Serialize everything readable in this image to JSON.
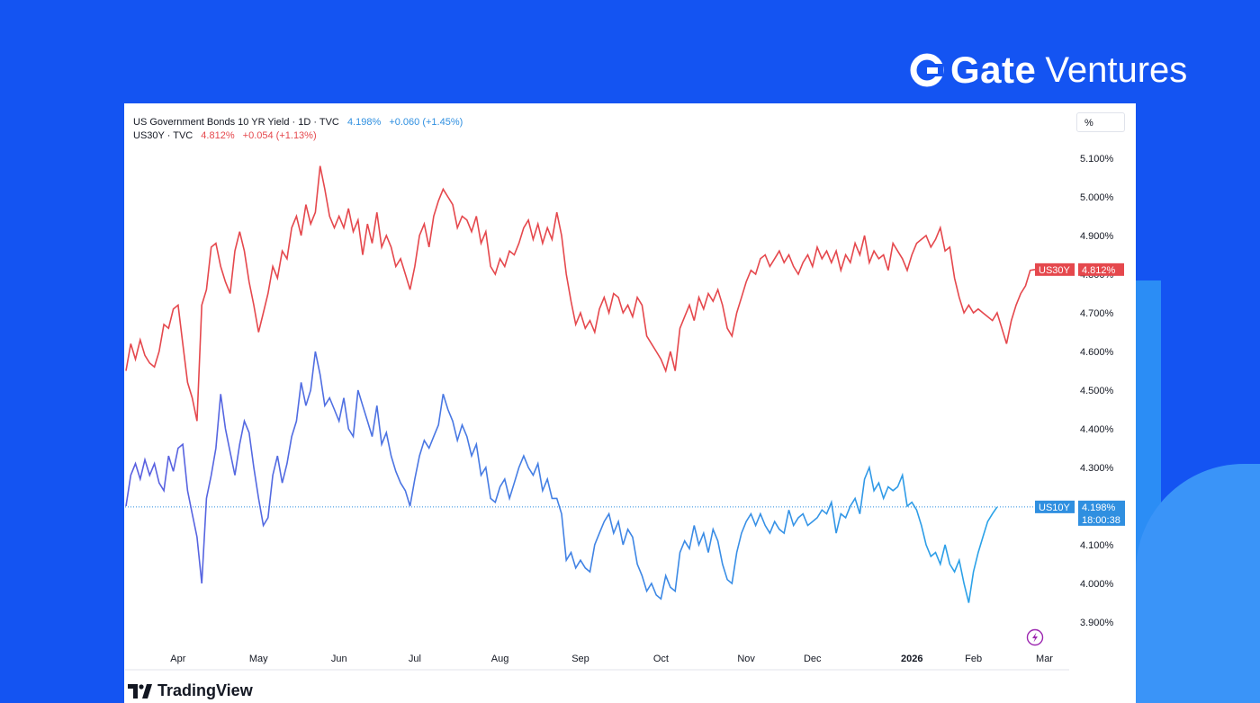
{
  "brand": {
    "logo_icon": "gate-logo-icon",
    "name_bold": "Gate",
    "name_light": "Ventures"
  },
  "legend": {
    "s1_title": "US Government Bonds 10 YR Yield · 1D · TVC",
    "s1_value": "4.198%",
    "s1_change": "+0.060 (+1.45%)",
    "s2_title": "US30Y · TVC",
    "s2_value": "4.812%",
    "s2_change": "+0.054 (+1.13%)"
  },
  "unit_label": "%",
  "footer": {
    "logo_icon": "tradingview-logo-icon",
    "name": "TradingView"
  },
  "colors": {
    "background": "#1454f2",
    "us30y": "#e5484d",
    "us10y_start": "#5b5fe0",
    "us10y_end": "#2aa3e8",
    "accent": "#2f8fe0"
  },
  "chart_data": {
    "type": "line",
    "ylim": [
      3.85,
      5.15
    ],
    "y_ticks": [
      "5.100%",
      "5.000%",
      "4.900%",
      "4.800%",
      "4.700%",
      "4.600%",
      "4.500%",
      "4.400%",
      "4.300%",
      "4.200%",
      "4.100%",
      "4.000%",
      "3.900%"
    ],
    "y_tick_values": [
      5.1,
      5.0,
      4.9,
      4.8,
      4.7,
      4.6,
      4.5,
      4.4,
      4.3,
      4.2,
      4.1,
      4.0,
      3.9
    ],
    "x_ticks": [
      "Apr",
      "May",
      "Jun",
      "Jul",
      "Aug",
      "Sep",
      "Oct",
      "Nov",
      "Dec",
      "2026",
      "Feb",
      "Mar"
    ],
    "x_tick_index": [
      11,
      28,
      45,
      61,
      79,
      96,
      113,
      131,
      145,
      166,
      179,
      194
    ],
    "series": [
      {
        "name": "US30Y",
        "last_label": "US30Y",
        "last_value": "4.812%",
        "values": [
          4.55,
          4.62,
          4.58,
          4.63,
          4.59,
          4.57,
          4.56,
          4.6,
          4.67,
          4.66,
          4.71,
          4.72,
          4.62,
          4.52,
          4.48,
          4.42,
          4.72,
          4.76,
          4.87,
          4.88,
          4.82,
          4.78,
          4.75,
          4.86,
          4.91,
          4.86,
          4.78,
          4.72,
          4.65,
          4.7,
          4.75,
          4.82,
          4.79,
          4.86,
          4.84,
          4.92,
          4.95,
          4.9,
          4.98,
          4.93,
          4.96,
          5.08,
          5.02,
          4.95,
          4.92,
          4.95,
          4.92,
          4.97,
          4.91,
          4.94,
          4.85,
          4.93,
          4.88,
          4.96,
          4.87,
          4.9,
          4.87,
          4.82,
          4.84,
          4.8,
          4.76,
          4.82,
          4.9,
          4.93,
          4.87,
          4.95,
          4.99,
          5.02,
          5.0,
          4.98,
          4.92,
          4.95,
          4.94,
          4.91,
          4.95,
          4.88,
          4.91,
          4.82,
          4.8,
          4.84,
          4.82,
          4.86,
          4.85,
          4.88,
          4.92,
          4.94,
          4.89,
          4.93,
          4.88,
          4.92,
          4.89,
          4.96,
          4.9,
          4.8,
          4.73,
          4.67,
          4.7,
          4.66,
          4.68,
          4.65,
          4.71,
          4.74,
          4.7,
          4.75,
          4.74,
          4.7,
          4.72,
          4.69,
          4.74,
          4.72,
          4.64,
          4.62,
          4.6,
          4.58,
          4.55,
          4.6,
          4.55,
          4.66,
          4.69,
          4.72,
          4.68,
          4.74,
          4.71,
          4.75,
          4.73,
          4.76,
          4.72,
          4.66,
          4.64,
          4.7,
          4.74,
          4.78,
          4.81,
          4.8,
          4.84,
          4.85,
          4.82,
          4.84,
          4.86,
          4.83,
          4.85,
          4.82,
          4.8,
          4.83,
          4.85,
          4.82,
          4.87,
          4.84,
          4.86,
          4.83,
          4.86,
          4.81,
          4.85,
          4.83,
          4.88,
          4.85,
          4.9,
          4.83,
          4.86,
          4.84,
          4.85,
          4.81,
          4.88,
          4.86,
          4.84,
          4.81,
          4.85,
          4.88,
          4.89,
          4.9,
          4.87,
          4.89,
          4.92,
          4.86,
          4.87,
          4.79,
          4.74,
          4.7,
          4.72,
          4.7,
          4.71,
          4.7,
          4.69,
          4.68,
          4.7,
          4.66,
          4.62,
          4.68,
          4.72,
          4.75,
          4.77,
          4.81,
          4.812
        ]
      },
      {
        "name": "US10Y",
        "last_label": "US10Y",
        "last_value": "4.198%",
        "countdown": "18:00:38",
        "values": [
          4.2,
          4.28,
          4.31,
          4.27,
          4.32,
          4.28,
          4.31,
          4.26,
          4.24,
          4.33,
          4.29,
          4.35,
          4.36,
          4.24,
          4.18,
          4.12,
          4.0,
          4.22,
          4.28,
          4.35,
          4.49,
          4.4,
          4.34,
          4.28,
          4.36,
          4.42,
          4.39,
          4.3,
          4.22,
          4.15,
          4.17,
          4.28,
          4.33,
          4.26,
          4.31,
          4.38,
          4.42,
          4.52,
          4.46,
          4.5,
          4.6,
          4.54,
          4.46,
          4.48,
          4.45,
          4.42,
          4.48,
          4.4,
          4.38,
          4.5,
          4.46,
          4.42,
          4.38,
          4.46,
          4.36,
          4.39,
          4.33,
          4.29,
          4.26,
          4.24,
          4.2,
          4.27,
          4.33,
          4.37,
          4.35,
          4.38,
          4.41,
          4.49,
          4.45,
          4.42,
          4.37,
          4.41,
          4.38,
          4.33,
          4.36,
          4.28,
          4.3,
          4.22,
          4.21,
          4.25,
          4.27,
          4.22,
          4.26,
          4.3,
          4.33,
          4.3,
          4.28,
          4.31,
          4.24,
          4.27,
          4.22,
          4.22,
          4.18,
          4.06,
          4.08,
          4.04,
          4.06,
          4.04,
          4.03,
          4.1,
          4.13,
          4.16,
          4.18,
          4.13,
          4.16,
          4.1,
          4.14,
          4.12,
          4.05,
          4.02,
          3.98,
          4.0,
          3.97,
          3.96,
          4.02,
          3.99,
          3.98,
          4.08,
          4.11,
          4.09,
          4.15,
          4.1,
          4.13,
          4.08,
          4.14,
          4.11,
          4.05,
          4.01,
          4.0,
          4.08,
          4.13,
          4.16,
          4.18,
          4.15,
          4.18,
          4.15,
          4.13,
          4.16,
          4.14,
          4.13,
          4.19,
          4.15,
          4.17,
          4.18,
          4.15,
          4.16,
          4.17,
          4.19,
          4.18,
          4.21,
          4.13,
          4.18,
          4.17,
          4.2,
          4.22,
          4.18,
          4.27,
          4.3,
          4.24,
          4.26,
          4.22,
          4.25,
          4.24,
          4.25,
          4.28,
          4.2,
          4.21,
          4.19,
          4.15,
          4.1,
          4.07,
          4.08,
          4.05,
          4.1,
          4.05,
          4.03,
          4.06,
          4.0,
          3.95,
          4.03,
          4.08,
          4.12,
          4.16,
          4.18,
          4.198
        ]
      }
    ]
  }
}
